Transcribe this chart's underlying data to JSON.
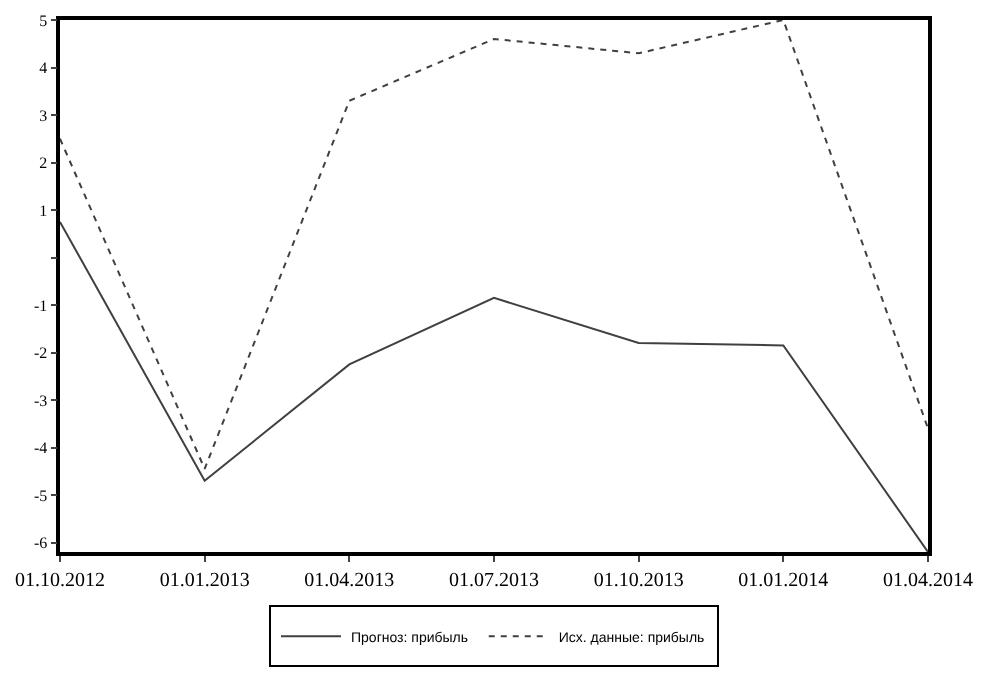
{
  "chart_data": {
    "type": "line",
    "categories": [
      "01.10.2012",
      "01.01.2013",
      "01.04.2013",
      "01.07.2013",
      "01.10.2013",
      "01.01.2014",
      "01.04.2014"
    ],
    "series": [
      {
        "name": "Прогноз: прибыль",
        "color": "#404040",
        "line_style": "solid",
        "values": [
          0.75,
          -4.7,
          -2.25,
          -0.85,
          -1.8,
          -1.85,
          -6.2
        ]
      },
      {
        "name": "Исх. данные: прибыль",
        "color": "#404040",
        "line_style": "dotted",
        "values": [
          2.5,
          -4.45,
          3.3,
          4.6,
          4.3,
          5.0,
          -3.6
        ]
      }
    ],
    "ylim": [
      -6.2,
      5
    ],
    "yticks": [
      -6,
      -5,
      -4,
      -3,
      -2,
      -1,
      {
        "value": 0,
        "label": null
      },
      1,
      2,
      3,
      4,
      5
    ],
    "grid": false,
    "legend": "bottom",
    "marker": "none"
  }
}
